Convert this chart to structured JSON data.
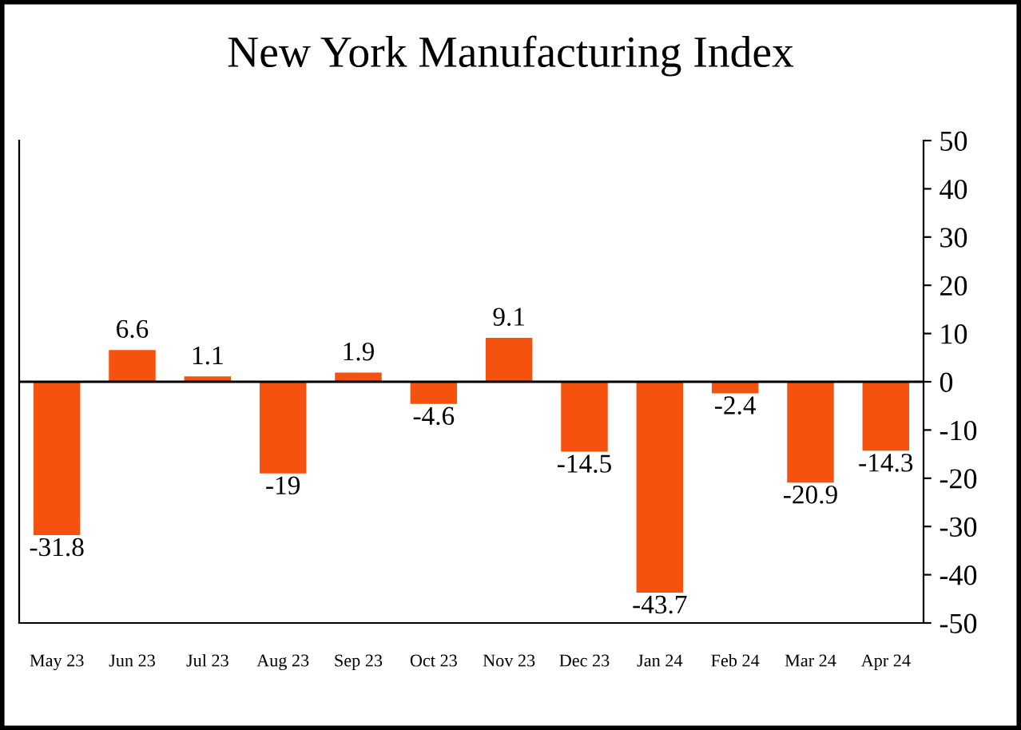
{
  "chart_data": {
    "type": "bar",
    "title": "New York Manufacturing Index",
    "categories": [
      "May 23",
      "Jun 23",
      "Jul 23",
      "Aug 23",
      "Sep 23",
      "Oct 23",
      "Nov 23",
      "Dec 23",
      "Jan 24",
      "Feb 24",
      "Mar 24",
      "Apr 24"
    ],
    "values": [
      -31.8,
      6.6,
      1.1,
      -19,
      1.9,
      -4.6,
      9.1,
      -14.5,
      -43.7,
      -2.4,
      -20.9,
      -14.3
    ],
    "color": "#f5520f",
    "ylim": [
      -50,
      50
    ],
    "yticks": [
      -50,
      -40,
      -30,
      -20,
      -10,
      0,
      10,
      20,
      30,
      40,
      50
    ],
    "ref_lines": [
      {
        "axis": "y",
        "value": 0,
        "color": "#000000"
      }
    ],
    "data_labels": true,
    "grid": false,
    "legend": false
  }
}
